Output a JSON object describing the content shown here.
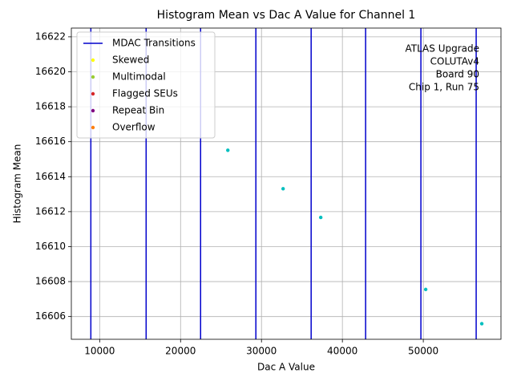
{
  "chart_data": {
    "type": "scatter",
    "title": "Histogram Mean vs Dac A Value for Channel 1",
    "xlabel": "Dac A Value",
    "ylabel": "Histogram Mean",
    "xlim": [
      6500,
      59600
    ],
    "ylim": [
      16604.7,
      16622.5
    ],
    "xticks": [
      10000,
      20000,
      30000,
      40000,
      50000
    ],
    "yticks": [
      16606,
      16608,
      16610,
      16612,
      16614,
      16616,
      16618,
      16620,
      16622
    ],
    "grid": true,
    "legend": "upper left",
    "vlines": {
      "name": "MDAC Transitions",
      "color": "#0000cc",
      "x": [
        8911,
        15743,
        22475,
        29307,
        36139,
        42871,
        49703,
        56535
      ]
    },
    "points": {
      "color": "#00bfbf",
      "x": [
        25842,
        32673,
        37327,
        50297,
        57228
      ],
      "values": [
        16615.51,
        16613.31,
        16611.67,
        16607.55,
        16605.59
      ]
    },
    "series": [
      {
        "name": "Skewed",
        "color": "#ffff00",
        "x": [],
        "values": []
      },
      {
        "name": "Multimodal",
        "color": "#9acd32",
        "x": [],
        "values": []
      },
      {
        "name": "Flagged SEUs",
        "color": "#d62728",
        "x": [],
        "values": []
      },
      {
        "name": "Repeat Bin",
        "color": "#800080",
        "x": [],
        "values": []
      },
      {
        "name": "Overflow",
        "color": "#ff7f0e",
        "x": [],
        "values": []
      }
    ],
    "annotation": [
      "ATLAS Upgrade",
      "COLUTAv4",
      "Board 90",
      "Chip 1, Run 75"
    ]
  }
}
